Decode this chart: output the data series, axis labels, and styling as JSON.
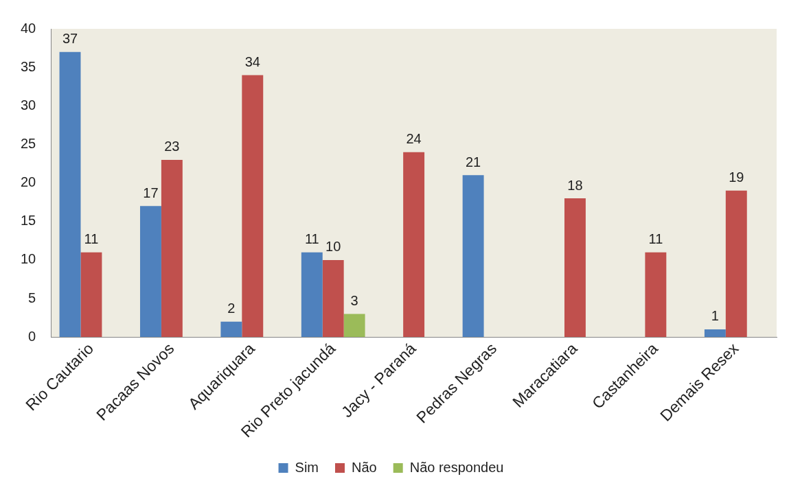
{
  "chart_data": {
    "type": "bar",
    "categories": [
      "Rio Cautario",
      "Pacaas Novos",
      "Aquariquara",
      "Rio Preto jacundá",
      "Jacy - Paraná",
      "Pedras Negras",
      "Maracatiara",
      "Castanheira",
      "Demais Resex"
    ],
    "series": [
      {
        "name": "Sim",
        "color": "#4f81bd",
        "values": [
          37,
          17,
          2,
          11,
          null,
          21,
          null,
          null,
          1
        ]
      },
      {
        "name": "Não",
        "color": "#c0504d",
        "values": [
          11,
          23,
          34,
          10,
          24,
          null,
          18,
          11,
          19
        ]
      },
      {
        "name": "Não respondeu",
        "color": "#9bbb59",
        "values": [
          null,
          null,
          null,
          3,
          null,
          null,
          null,
          null,
          null
        ]
      }
    ],
    "ylim": [
      0,
      40
    ],
    "yticks": [
      0,
      5,
      10,
      15,
      20,
      25,
      30,
      35,
      40
    ],
    "data_labels": true,
    "legend": "bottom"
  }
}
